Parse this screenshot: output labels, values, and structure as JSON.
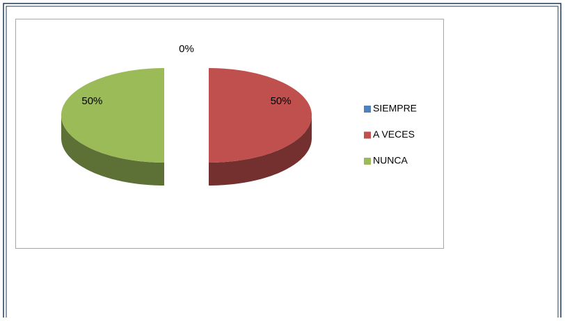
{
  "chart_data": {
    "type": "pie",
    "categories": [
      "SIEMPRE",
      "A VECES",
      "NUNCA"
    ],
    "values": [
      0,
      50,
      50
    ],
    "value_labels": [
      "0%",
      "50%",
      "50%"
    ],
    "colors": [
      "#4f81bd",
      "#c0504d",
      "#9bbb59"
    ],
    "legend": "right"
  }
}
